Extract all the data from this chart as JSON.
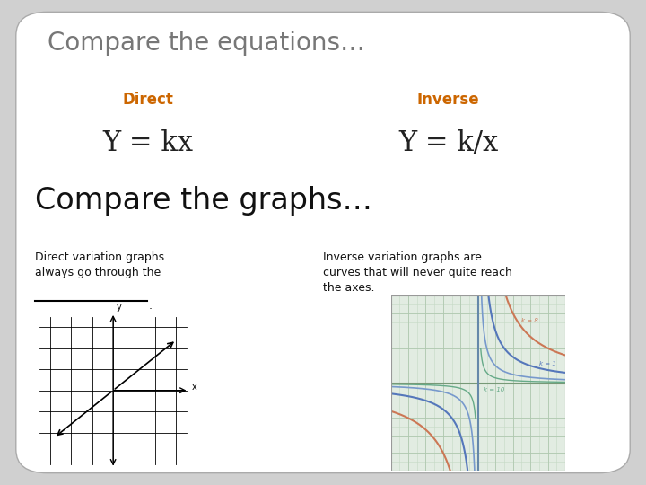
{
  "bg_color": "#d0d0d0",
  "slide_bg": "#ffffff",
  "title": "Compare the equations…",
  "title_color": "#777777",
  "title_fontsize": 20,
  "direct_label": "Direct",
  "inverse_label": "Inverse",
  "label_color": "#cc6600",
  "label_fontsize": 12,
  "eq_direct": "Y = kx",
  "eq_inverse": "Y = k/x",
  "eq_fontsize": 22,
  "eq_color": "#222222",
  "subtitle": "Compare the graphs…",
  "subtitle_fontsize": 24,
  "subtitle_color": "#111111",
  "desc_direct": "Direct variation graphs\nalways go through the",
  "desc_inverse": "Inverse variation graphs are\ncurves that will never quite reach\nthe axes.",
  "desc_fontsize": 9,
  "desc_color": "#111111"
}
